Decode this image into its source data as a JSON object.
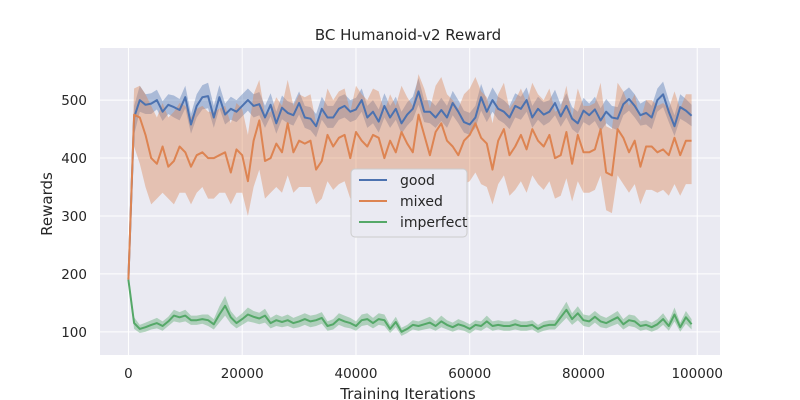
{
  "chart_data": {
    "type": "line",
    "title": "BC Humanoid-v2 Reward",
    "xlabel": "Training Iterations",
    "ylabel": "Rewards",
    "xlim": [
      -5000,
      104000
    ],
    "ylim": [
      60,
      590
    ],
    "xticks": [
      0,
      20000,
      40000,
      60000,
      80000,
      100000
    ],
    "yticks": [
      100,
      200,
      300,
      400,
      500
    ],
    "grid": true,
    "legend_position": "center",
    "colors": {
      "good": "#4c72b0",
      "mixed": "#dd8452",
      "imperfect": "#55a868",
      "background": "#eaeaf2",
      "grid": "#ffffff"
    },
    "x": [
      0,
      1000,
      2000,
      3000,
      4000,
      5000,
      6000,
      7000,
      8000,
      9000,
      10000,
      11000,
      12000,
      13000,
      14000,
      15000,
      16000,
      17000,
      18000,
      19000,
      20000,
      21000,
      22000,
      23000,
      24000,
      25000,
      26000,
      27000,
      28000,
      29000,
      30000,
      31000,
      32000,
      33000,
      34000,
      35000,
      36000,
      37000,
      38000,
      39000,
      40000,
      41000,
      42000,
      43000,
      44000,
      45000,
      46000,
      47000,
      48000,
      49000,
      50000,
      51000,
      52000,
      53000,
      54000,
      55000,
      56000,
      57000,
      58000,
      59000,
      60000,
      61000,
      62000,
      63000,
      64000,
      65000,
      66000,
      67000,
      68000,
      69000,
      70000,
      71000,
      72000,
      73000,
      74000,
      75000,
      76000,
      77000,
      78000,
      79000,
      80000,
      81000,
      82000,
      83000,
      84000,
      85000,
      86000,
      87000,
      88000,
      89000,
      90000,
      91000,
      92000,
      93000,
      94000,
      95000,
      96000,
      97000,
      98000,
      99000
    ],
    "series": [
      {
        "name": "good",
        "values": [
          190,
          470,
          500,
          492,
          494,
          500,
          480,
          492,
          488,
          483,
          505,
          458,
          490,
          505,
          507,
          470,
          505,
          475,
          485,
          480,
          490,
          500,
          490,
          493,
          470,
          492,
          460,
          487,
          478,
          474,
          495,
          470,
          468,
          455,
          485,
          470,
          470,
          485,
          490,
          480,
          484,
          500,
          470,
          480,
          463,
          490,
          470,
          485,
          460,
          475,
          485,
          515,
          480,
          480,
          470,
          483,
          470,
          495,
          480,
          462,
          458,
          470,
          505,
          480,
          500,
          485,
          480,
          470,
          490,
          485,
          500,
          470,
          485,
          475,
          480,
          495,
          472,
          490,
          468,
          460,
          482,
          474,
          484,
          465,
          480,
          470,
          468,
          493,
          502,
          490,
          474,
          478,
          470,
          500,
          510,
          480,
          455,
          488,
          482,
          473
        ],
        "lower": [
          180,
          440,
          480,
          476,
          476,
          484,
          464,
          476,
          470,
          465,
          486,
          442,
          470,
          484,
          486,
          452,
          486,
          458,
          466,
          462,
          472,
          482,
          470,
          474,
          452,
          472,
          442,
          467,
          460,
          456,
          475,
          452,
          448,
          436,
          466,
          452,
          452,
          466,
          470,
          462,
          466,
          480,
          452,
          460,
          444,
          470,
          452,
          466,
          442,
          456,
          466,
          492,
          462,
          460,
          452,
          464,
          452,
          474,
          460,
          444,
          440,
          452,
          482,
          462,
          480,
          466,
          460,
          450,
          470,
          466,
          480,
          452,
          466,
          456,
          462,
          474,
          454,
          470,
          450,
          442,
          462,
          456,
          464,
          446,
          460,
          452,
          448,
          474,
          482,
          470,
          456,
          458,
          450,
          480,
          488,
          462,
          438,
          468,
          462,
          455
        ],
        "upper": [
          200,
          490,
          525,
          510,
          512,
          518,
          498,
          510,
          508,
          502,
          525,
          476,
          510,
          526,
          530,
          490,
          526,
          494,
          506,
          500,
          510,
          520,
          510,
          514,
          490,
          512,
          480,
          508,
          498,
          494,
          515,
          490,
          488,
          476,
          506,
          490,
          490,
          506,
          510,
          500,
          504,
          520,
          490,
          500,
          484,
          512,
          490,
          506,
          480,
          496,
          506,
          538,
          500,
          500,
          490,
          504,
          490,
          516,
          500,
          482,
          478,
          490,
          528,
          500,
          522,
          506,
          500,
          490,
          512,
          506,
          522,
          490,
          506,
          496,
          500,
          518,
          492,
          512,
          488,
          480,
          504,
          494,
          506,
          486,
          502,
          490,
          488,
          514,
          522,
          510,
          494,
          500,
          490,
          520,
          532,
          500,
          474,
          510,
          502,
          492
        ]
      },
      {
        "name": "mixed",
        "values": [
          190,
          475,
          470,
          440,
          400,
          390,
          420,
          385,
          395,
          420,
          410,
          385,
          405,
          410,
          400,
          400,
          405,
          410,
          375,
          415,
          405,
          360,
          430,
          465,
          395,
          400,
          425,
          410,
          460,
          410,
          430,
          425,
          430,
          380,
          395,
          440,
          420,
          435,
          440,
          400,
          445,
          430,
          420,
          440,
          435,
          400,
          430,
          410,
          445,
          425,
          410,
          475,
          440,
          405,
          445,
          460,
          430,
          420,
          405,
          430,
          440,
          460,
          435,
          425,
          380,
          430,
          450,
          405,
          420,
          440,
          415,
          450,
          430,
          420,
          440,
          400,
          405,
          445,
          390,
          440,
          410,
          410,
          415,
          450,
          375,
          370,
          450,
          435,
          410,
          430,
          385,
          420,
          420,
          410,
          415,
          405,
          435,
          405,
          430,
          430
        ],
        "lower": [
          180,
          420,
          390,
          350,
          320,
          330,
          340,
          330,
          320,
          340,
          340,
          320,
          340,
          350,
          330,
          330,
          340,
          340,
          320,
          340,
          340,
          300,
          350,
          380,
          330,
          340,
          350,
          340,
          370,
          340,
          350,
          350,
          350,
          320,
          330,
          360,
          345,
          355,
          360,
          330,
          365,
          350,
          345,
          360,
          355,
          330,
          355,
          340,
          365,
          350,
          340,
          380,
          360,
          335,
          365,
          375,
          355,
          345,
          335,
          355,
          360,
          375,
          355,
          350,
          320,
          355,
          370,
          335,
          345,
          360,
          340,
          370,
          355,
          345,
          360,
          330,
          335,
          365,
          325,
          360,
          340,
          340,
          345,
          370,
          310,
          305,
          370,
          355,
          340,
          355,
          320,
          345,
          345,
          340,
          345,
          335,
          355,
          335,
          355,
          355
        ],
        "upper": [
          200,
          520,
          525,
          510,
          490,
          470,
          495,
          470,
          480,
          495,
          490,
          470,
          485,
          490,
          480,
          480,
          485,
          490,
          460,
          495,
          485,
          440,
          510,
          535,
          475,
          480,
          505,
          490,
          535,
          490,
          510,
          505,
          510,
          460,
          475,
          520,
          500,
          515,
          520,
          480,
          525,
          510,
          500,
          520,
          515,
          480,
          510,
          490,
          525,
          505,
          490,
          545,
          520,
          485,
          525,
          540,
          510,
          500,
          485,
          510,
          520,
          540,
          515,
          505,
          460,
          510,
          530,
          485,
          500,
          520,
          495,
          530,
          510,
          500,
          520,
          480,
          485,
          525,
          470,
          520,
          490,
          490,
          495,
          530,
          455,
          450,
          530,
          515,
          490,
          510,
          465,
          500,
          500,
          490,
          495,
          485,
          515,
          485,
          510,
          510
        ]
      },
      {
        "name": "imperfect",
        "values": [
          190,
          115,
          105,
          108,
          112,
          115,
          110,
          118,
          128,
          125,
          128,
          120,
          120,
          122,
          120,
          113,
          130,
          145,
          125,
          115,
          122,
          130,
          126,
          123,
          128,
          115,
          120,
          117,
          120,
          115,
          118,
          122,
          118,
          120,
          124,
          110,
          113,
          122,
          118,
          115,
          110,
          120,
          122,
          115,
          122,
          120,
          105,
          117,
          100,
          105,
          112,
          110,
          113,
          116,
          110,
          118,
          112,
          108,
          113,
          110,
          105,
          112,
          110,
          118,
          110,
          112,
          110,
          110,
          113,
          110,
          110,
          112,
          105,
          110,
          112,
          112,
          125,
          138,
          122,
          132,
          120,
          118,
          126,
          118,
          115,
          120,
          125,
          113,
          120,
          118,
          110,
          112,
          108,
          113,
          122,
          110,
          130,
          108,
          125,
          113
        ],
        "lower": [
          180,
          105,
          98,
          100,
          104,
          106,
          102,
          110,
          118,
          116,
          118,
          112,
          112,
          114,
          110,
          104,
          116,
          128,
          114,
          106,
          112,
          118,
          116,
          113,
          116,
          106,
          110,
          108,
          110,
          106,
          108,
          112,
          108,
          110,
          114,
          102,
          104,
          112,
          108,
          106,
          102,
          110,
          112,
          106,
          112,
          110,
          98,
          108,
          93,
          98,
          104,
          102,
          104,
          106,
          102,
          108,
          104,
          100,
          104,
          102,
          97,
          104,
          102,
          108,
          102,
          104,
          102,
          102,
          104,
          102,
          102,
          104,
          98,
          102,
          104,
          104,
          114,
          124,
          112,
          120,
          110,
          108,
          116,
          108,
          106,
          110,
          114,
          104,
          110,
          108,
          102,
          104,
          100,
          104,
          112,
          102,
          118,
          100,
          114,
          104
        ],
        "upper": [
          200,
          125,
          112,
          116,
          120,
          124,
          118,
          126,
          138,
          134,
          138,
          128,
          128,
          130,
          130,
          122,
          144,
          162,
          136,
          124,
          132,
          142,
          136,
          133,
          140,
          124,
          130,
          126,
          130,
          124,
          128,
          132,
          128,
          130,
          134,
          118,
          122,
          132,
          128,
          124,
          118,
          130,
          132,
          124,
          132,
          130,
          112,
          126,
          107,
          112,
          120,
          118,
          122,
          126,
          118,
          128,
          120,
          116,
          122,
          118,
          113,
          120,
          118,
          128,
          118,
          120,
          118,
          118,
          122,
          118,
          118,
          120,
          112,
          118,
          120,
          120,
          136,
          152,
          132,
          144,
          130,
          128,
          136,
          128,
          124,
          130,
          136,
          122,
          130,
          128,
          118,
          120,
          116,
          122,
          132,
          118,
          142,
          116,
          136,
          122
        ]
      }
    ]
  }
}
